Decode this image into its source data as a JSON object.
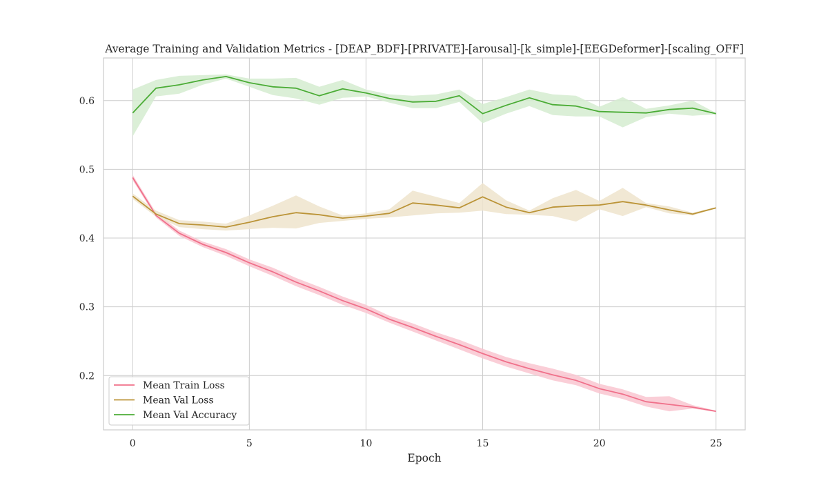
{
  "chart_data": {
    "type": "line",
    "title": "Average Training and Validation Metrics - [DEAP_BDF]-[PRIVATE]-[arousal]-[k_simple]-[EEGDeformer]-[scaling_OFF]",
    "xlabel": "Epoch",
    "ylabel": "",
    "xlim": [
      -1.25,
      26.25
    ],
    "ylim": [
      0.121,
      0.662
    ],
    "xticks": [
      0,
      5,
      10,
      15,
      20,
      25
    ],
    "xtick_labels": [
      "0",
      "5",
      "10",
      "15",
      "20",
      "25"
    ],
    "yticks": [
      0.2,
      0.3,
      0.4,
      0.5,
      0.6
    ],
    "ytick_labels": [
      "0.2",
      "0.3",
      "0.4",
      "0.5",
      "0.6"
    ],
    "grid": true,
    "legend_position": "lower-left",
    "x": [
      0,
      1,
      2,
      3,
      4,
      5,
      6,
      7,
      8,
      9,
      10,
      11,
      12,
      13,
      14,
      15,
      16,
      17,
      18,
      19,
      20,
      21,
      22,
      23,
      24,
      25
    ],
    "series": [
      {
        "name": "Mean Train Loss",
        "color": "#f0708a",
        "band_color": "#f9c6d0",
        "values": [
          0.488,
          0.433,
          0.407,
          0.391,
          0.379,
          0.364,
          0.351,
          0.336,
          0.323,
          0.309,
          0.297,
          0.282,
          0.27,
          0.257,
          0.245,
          0.232,
          0.22,
          0.21,
          0.201,
          0.193,
          0.181,
          0.173,
          0.162,
          0.158,
          0.154,
          0.148
        ],
        "lower": [
          0.484,
          0.43,
          0.403,
          0.387,
          0.374,
          0.359,
          0.345,
          0.33,
          0.317,
          0.303,
          0.291,
          0.277,
          0.264,
          0.251,
          0.238,
          0.225,
          0.213,
          0.203,
          0.193,
          0.186,
          0.174,
          0.166,
          0.155,
          0.148,
          0.152,
          0.147
        ],
        "upper": [
          0.492,
          0.437,
          0.411,
          0.395,
          0.384,
          0.369,
          0.357,
          0.342,
          0.329,
          0.315,
          0.303,
          0.287,
          0.276,
          0.263,
          0.252,
          0.239,
          0.227,
          0.218,
          0.21,
          0.201,
          0.188,
          0.18,
          0.169,
          0.17,
          0.157,
          0.149
        ]
      },
      {
        "name": "Mean Val Loss",
        "color": "#bb9438",
        "band_color": "#efe4cd",
        "values": [
          0.461,
          0.435,
          0.421,
          0.419,
          0.416,
          0.423,
          0.431,
          0.437,
          0.434,
          0.429,
          0.432,
          0.436,
          0.451,
          0.448,
          0.444,
          0.46,
          0.445,
          0.437,
          0.445,
          0.447,
          0.448,
          0.453,
          0.448,
          0.441,
          0.435,
          0.444
        ],
        "lower": [
          0.457,
          0.431,
          0.416,
          0.413,
          0.411,
          0.413,
          0.415,
          0.414,
          0.422,
          0.425,
          0.428,
          0.43,
          0.433,
          0.436,
          0.437,
          0.44,
          0.435,
          0.434,
          0.432,
          0.424,
          0.442,
          0.432,
          0.445,
          0.436,
          0.433,
          0.443
        ],
        "upper": [
          0.465,
          0.44,
          0.426,
          0.424,
          0.421,
          0.433,
          0.447,
          0.462,
          0.446,
          0.433,
          0.436,
          0.442,
          0.469,
          0.46,
          0.451,
          0.48,
          0.455,
          0.44,
          0.458,
          0.47,
          0.454,
          0.473,
          0.451,
          0.446,
          0.437,
          0.445
        ]
      },
      {
        "name": "Mean Val Accuracy",
        "color": "#4bac36",
        "band_color": "#d5ecd0",
        "values": [
          0.582,
          0.618,
          0.623,
          0.63,
          0.635,
          0.626,
          0.62,
          0.618,
          0.607,
          0.617,
          0.611,
          0.603,
          0.598,
          0.599,
          0.607,
          0.581,
          0.593,
          0.604,
          0.594,
          0.592,
          0.584,
          0.583,
          0.582,
          0.587,
          0.589,
          0.581
        ],
        "lower": [
          0.548,
          0.606,
          0.61,
          0.623,
          0.632,
          0.62,
          0.608,
          0.603,
          0.594,
          0.604,
          0.606,
          0.597,
          0.589,
          0.589,
          0.598,
          0.567,
          0.581,
          0.592,
          0.579,
          0.577,
          0.577,
          0.561,
          0.576,
          0.581,
          0.578,
          0.58
        ],
        "upper": [
          0.616,
          0.63,
          0.636,
          0.637,
          0.638,
          0.632,
          0.632,
          0.633,
          0.62,
          0.63,
          0.616,
          0.609,
          0.607,
          0.609,
          0.616,
          0.595,
          0.605,
          0.616,
          0.609,
          0.607,
          0.591,
          0.605,
          0.588,
          0.593,
          0.6,
          0.582
        ]
      }
    ]
  }
}
